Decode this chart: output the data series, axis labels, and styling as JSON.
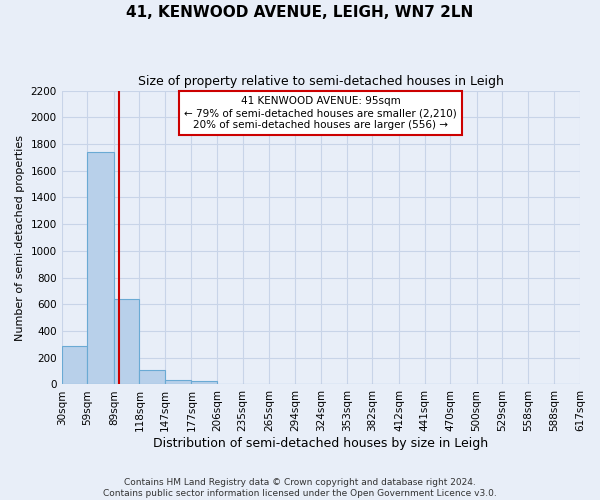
{
  "title": "41, KENWOOD AVENUE, LEIGH, WN7 2LN",
  "subtitle": "Size of property relative to semi-detached houses in Leigh",
  "xlabel_bottom": "Distribution of semi-detached houses by size in Leigh",
  "ylabel": "Number of semi-detached properties",
  "footer": "Contains HM Land Registry data © Crown copyright and database right 2024.\nContains public sector information licensed under the Open Government Licence v3.0.",
  "bins": [
    30,
    59,
    89,
    118,
    147,
    177,
    206,
    235,
    265,
    294,
    324,
    353,
    382,
    412,
    441,
    470,
    500,
    529,
    558,
    588,
    617
  ],
  "values": [
    290,
    1740,
    640,
    110,
    30,
    25,
    0,
    0,
    0,
    0,
    0,
    0,
    0,
    0,
    0,
    0,
    0,
    0,
    0,
    0
  ],
  "bar_color": "#b8d0ea",
  "bar_edge_color": "#6aaad4",
  "annotation_text": "41 KENWOOD AVENUE: 95sqm\n← 79% of semi-detached houses are smaller (2,210)\n20% of semi-detached houses are larger (556) →",
  "annotation_box_color": "#ffffff",
  "annotation_box_edge": "#cc0000",
  "grid_color": "#c8d4e8",
  "background_color": "#e8eef8",
  "ylim": [
    0,
    2200
  ],
  "yticks": [
    0,
    200,
    400,
    600,
    800,
    1000,
    1200,
    1400,
    1600,
    1800,
    2000,
    2200
  ],
  "title_fontsize": 11,
  "subtitle_fontsize": 9,
  "ylabel_fontsize": 8,
  "xlabel_fontsize": 9,
  "tick_fontsize": 7.5,
  "footer_fontsize": 6.5
}
